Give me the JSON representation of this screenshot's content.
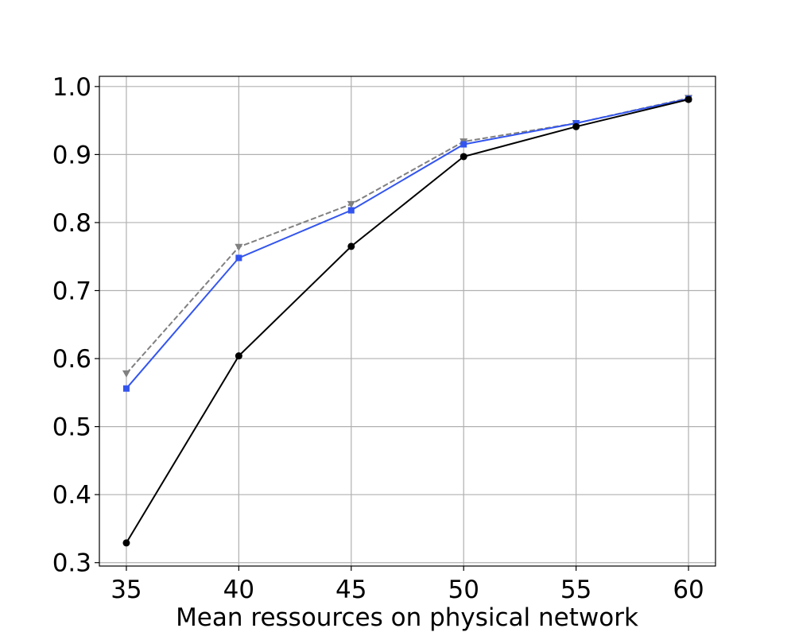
{
  "chart_data": {
    "type": "line",
    "title": "",
    "xlabel": "Mean ressources on physical network",
    "ylabel": "",
    "x": [
      35,
      40,
      45,
      50,
      55,
      60
    ],
    "xlim": [
      33.8,
      61.2
    ],
    "ylim": [
      0.295,
      1.015
    ],
    "xticks": [
      35,
      40,
      45,
      50,
      55,
      60
    ],
    "yticks": [
      0.3,
      0.4,
      0.5,
      0.6,
      0.7,
      0.8,
      0.9,
      1.0
    ],
    "ytick_labels": [
      "0.3",
      "0.4",
      "0.5",
      "0.6",
      "0.7",
      "0.8",
      "0.9",
      "1.0"
    ],
    "grid": true,
    "legend": "none",
    "series": [
      {
        "key": "gray",
        "color": "#808080",
        "line_style": "dashed",
        "marker": "triangle-down",
        "values": [
          0.578,
          0.764,
          0.827,
          0.919,
          0.946,
          0.983
        ]
      },
      {
        "key": "blue",
        "color": "#3355ee",
        "line_style": "solid",
        "marker": "square",
        "values": [
          0.556,
          0.748,
          0.818,
          0.915,
          0.946,
          0.982
        ]
      },
      {
        "key": "black",
        "color": "#000000",
        "line_style": "solid",
        "marker": "circle",
        "values": [
          0.329,
          0.604,
          0.765,
          0.897,
          0.941,
          0.981
        ]
      }
    ]
  }
}
